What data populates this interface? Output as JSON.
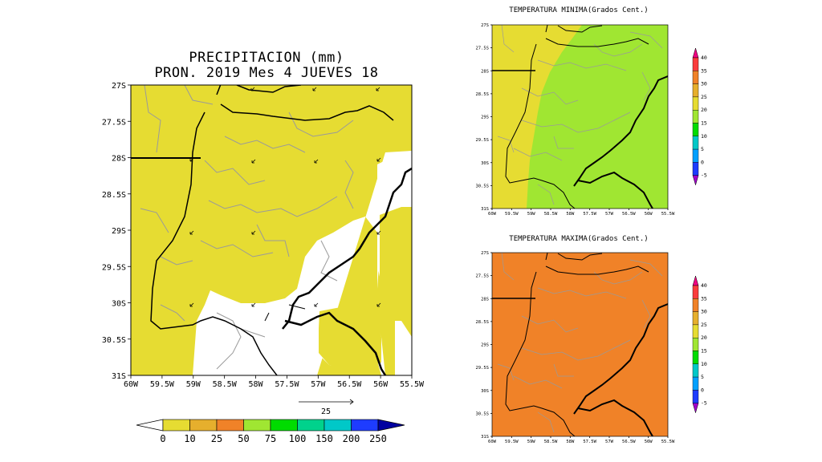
{
  "precipitation": {
    "title_line1": "PRECIPITACION (mm)",
    "title_line2": "PRON. 2019 Mes 4 JUEVES 18",
    "y_ticks": [
      "27S",
      "27.5S",
      "28S",
      "28.5S",
      "29S",
      "29.5S",
      "30S",
      "30.5S",
      "31S"
    ],
    "x_ticks": [
      "60W",
      "59.5W",
      "59W",
      "58.5W",
      "58W",
      "57.5W",
      "57W",
      "56.5W",
      "56W",
      "55.5W"
    ],
    "vector_scale_label": "25",
    "colorbar": {
      "labels": [
        "0",
        "10",
        "25",
        "50",
        "75",
        "100",
        "150",
        "200",
        "250"
      ],
      "colors": [
        "#e6dc32",
        "#e6af2d",
        "#f08228",
        "#a0e632",
        "#00dc00",
        "#00d28c",
        "#00c8c8",
        "#1e3cff",
        "#0000a0"
      ]
    },
    "fill_dominant": "#e6dc32"
  },
  "tmin": {
    "title": "TEMPERATURA MINIMA(Grados Cent.)",
    "y_ticks": [
      "27S",
      "27.5S",
      "28S",
      "28.5S",
      "29S",
      "29.5S",
      "30S",
      "30.5S",
      "31S"
    ],
    "x_ticks": [
      "60W",
      "59.5W",
      "59W",
      "58.5W",
      "58W",
      "57.5W",
      "57W",
      "56.5W",
      "56W",
      "55.5W"
    ],
    "colorbar": {
      "labels": [
        "-5",
        "0",
        "5",
        "10",
        "15",
        "20",
        "25",
        "30",
        "35",
        "40"
      ],
      "colors": [
        "#a000c8",
        "#1e3cff",
        "#00a0ff",
        "#00c8c8",
        "#00dc00",
        "#a0e632",
        "#e6dc32",
        "#e6af2d",
        "#f08228",
        "#fa3c3c",
        "#f00082"
      ]
    },
    "fill_west": "#e6dc32",
    "fill_east": "#a0e632"
  },
  "tmax": {
    "title": "TEMPERATURA MAXIMA(Grados Cent.)",
    "y_ticks": [
      "27S",
      "27.5S",
      "28S",
      "28.5S",
      "29S",
      "29.5S",
      "30S",
      "30.5S",
      "31S"
    ],
    "x_ticks": [
      "60W",
      "59.5W",
      "59W",
      "58.5W",
      "58W",
      "57.5W",
      "57W",
      "56.5W",
      "56W",
      "55.5W"
    ],
    "colorbar": {
      "labels": [
        "-5",
        "0",
        "5",
        "10",
        "15",
        "20",
        "25",
        "30",
        "35",
        "40"
      ],
      "colors": [
        "#a000c8",
        "#1e3cff",
        "#00a0ff",
        "#00c8c8",
        "#00dc00",
        "#a0e632",
        "#e6dc32",
        "#e6af2d",
        "#f08228",
        "#fa3c3c",
        "#f00082"
      ]
    },
    "fill_dominant": "#f08228"
  }
}
